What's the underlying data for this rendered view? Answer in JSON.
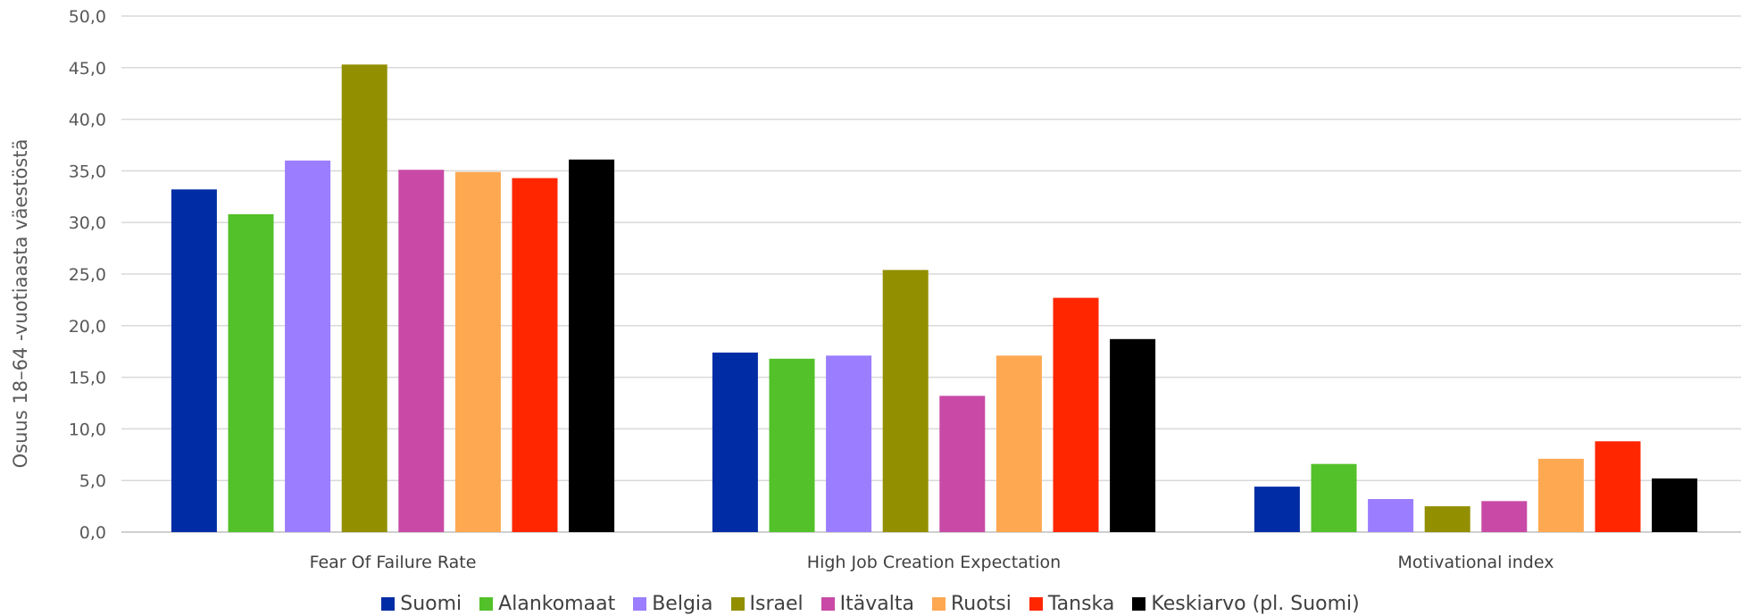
{
  "chart_data": {
    "type": "bar",
    "categories": [
      "Fear Of Failure Rate",
      "High Job Creation Expectation",
      "Motivational index"
    ],
    "ylabel": "Osuus 18–64 -vuotiaasta väestöstä",
    "ylim": [
      0,
      50
    ],
    "yticks": [
      "0,0",
      "5,0",
      "10,0",
      "15,0",
      "20,0",
      "25,0",
      "30,0",
      "35,0",
      "40,0",
      "45,0",
      "50,0"
    ],
    "grid": true,
    "legend_position": "bottom",
    "series": [
      {
        "name": "Suomi",
        "color": "#002DA5",
        "values": [
          33.2,
          17.4,
          4.4
        ]
      },
      {
        "name": "Alankomaat",
        "color": "#52C12A",
        "values": [
          30.8,
          16.8,
          6.6
        ]
      },
      {
        "name": "Belgia",
        "color": "#9B7EFF",
        "values": [
          36.0,
          17.1,
          3.2
        ]
      },
      {
        "name": "Israel",
        "color": "#928F00",
        "values": [
          45.3,
          25.4,
          2.5
        ]
      },
      {
        "name": "Itävalta",
        "color": "#C84AA6",
        "values": [
          35.1,
          13.2,
          3.0
        ]
      },
      {
        "name": "Ruotsi",
        "color": "#FFA852",
        "values": [
          34.9,
          17.1,
          7.1
        ]
      },
      {
        "name": "Tanska",
        "color": "#FF2600",
        "values": [
          34.3,
          22.7,
          8.8
        ]
      },
      {
        "name": "Keskiarvo (pl. Suomi)",
        "color": "#000000",
        "values": [
          36.1,
          18.7,
          5.2
        ]
      }
    ]
  }
}
